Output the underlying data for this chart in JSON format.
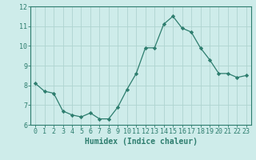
{
  "x": [
    0,
    1,
    2,
    3,
    4,
    5,
    6,
    7,
    8,
    9,
    10,
    11,
    12,
    13,
    14,
    15,
    16,
    17,
    18,
    19,
    20,
    21,
    22,
    23
  ],
  "y": [
    8.1,
    7.7,
    7.6,
    6.7,
    6.5,
    6.4,
    6.6,
    6.3,
    6.3,
    6.9,
    7.8,
    8.6,
    9.9,
    9.9,
    11.1,
    11.5,
    10.9,
    10.7,
    9.9,
    9.3,
    8.6,
    8.6,
    8.4,
    8.5
  ],
  "line_color": "#2d7d6e",
  "marker": "D",
  "marker_size": 2.2,
  "bg_color": "#ceecea",
  "grid_color": "#aed4d0",
  "xlabel": "Humidex (Indice chaleur)",
  "ylim": [
    6,
    12
  ],
  "xlim": [
    -0.5,
    23.5
  ],
  "yticks": [
    6,
    7,
    8,
    9,
    10,
    11,
    12
  ],
  "xticks": [
    0,
    1,
    2,
    3,
    4,
    5,
    6,
    7,
    8,
    9,
    10,
    11,
    12,
    13,
    14,
    15,
    16,
    17,
    18,
    19,
    20,
    21,
    22,
    23
  ],
  "axis_color": "#2d7d6e",
  "tick_color": "#2d7d6e",
  "label_fontsize": 7,
  "tick_fontsize": 6
}
